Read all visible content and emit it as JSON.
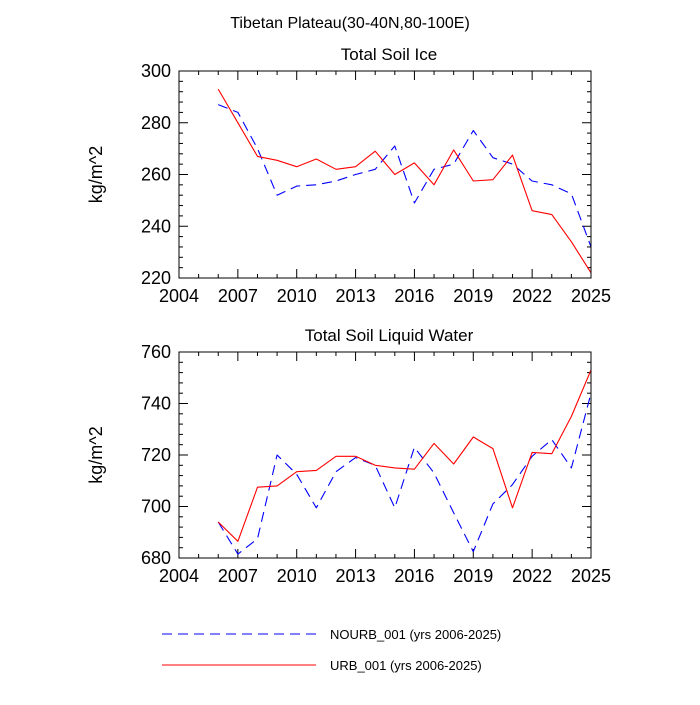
{
  "figure_title": "Tibetan Plateau(30-40N,80-100E)",
  "colors": {
    "nourb": "#0000ff",
    "urb": "#ff0000",
    "axis": "#000000"
  },
  "legend": [
    {
      "name": "NOURB_001",
      "label": "NOURB_001 (yrs 2006-2025)",
      "style": "dashed",
      "color": "#0000ff"
    },
    {
      "name": "URB_001",
      "label": "URB_001 (yrs 2006-2025)",
      "style": "solid",
      "color": "#ff0000"
    }
  ],
  "chart_data": [
    {
      "type": "line",
      "title": "Total Soil Ice",
      "xlabel": "",
      "ylabel": "kg/m^2",
      "xlim": [
        2004,
        2025
      ],
      "ylim": [
        220,
        300
      ],
      "xticks": [
        2004,
        2007,
        2010,
        2013,
        2016,
        2019,
        2022,
        2025
      ],
      "yticks": [
        220,
        240,
        260,
        280,
        300
      ],
      "x": [
        2006,
        2007,
        2008,
        2009,
        2010,
        2011,
        2012,
        2013,
        2014,
        2015,
        2016,
        2017,
        2018,
        2019,
        2020,
        2021,
        2022,
        2023,
        2024,
        2025
      ],
      "series": [
        {
          "name": "NOURB_001",
          "values": [
            287,
            284,
            270,
            252,
            255.5,
            256,
            257.5,
            260,
            262,
            271,
            249,
            262,
            264,
            277,
            266.5,
            264,
            257.5,
            256,
            252.5,
            232
          ]
        },
        {
          "name": "URB_001",
          "values": [
            293,
            280,
            267,
            265.5,
            263,
            266,
            262,
            263,
            269,
            260,
            264.5,
            256,
            269.5,
            257.5,
            258,
            267.5,
            246,
            244.5,
            234,
            222
          ]
        }
      ]
    },
    {
      "type": "line",
      "title": "Total Soil Liquid Water",
      "xlabel": "",
      "ylabel": "kg/m^2",
      "xlim": [
        2004,
        2025
      ],
      "ylim": [
        680,
        760
      ],
      "xticks": [
        2004,
        2007,
        2010,
        2013,
        2016,
        2019,
        2022,
        2025
      ],
      "yticks": [
        680,
        700,
        720,
        740,
        760
      ],
      "x": [
        2006,
        2007,
        2008,
        2009,
        2010,
        2011,
        2012,
        2013,
        2014,
        2015,
        2016,
        2017,
        2018,
        2019,
        2020,
        2021,
        2022,
        2023,
        2024,
        2025
      ],
      "series": [
        {
          "name": "NOURB_001",
          "values": [
            694,
            681.5,
            687.5,
            720,
            712.5,
            699.5,
            713.5,
            719,
            716,
            699.5,
            723,
            713,
            697.5,
            682.5,
            701,
            708.5,
            719.5,
            726,
            715,
            744
          ]
        },
        {
          "name": "URB_001",
          "values": [
            694,
            686.5,
            707.5,
            708,
            713.5,
            714,
            719.5,
            719.5,
            716,
            715,
            714.5,
            724.5,
            716.5,
            727,
            722.5,
            699.5,
            721,
            720.5,
            735,
            753
          ]
        }
      ]
    }
  ]
}
